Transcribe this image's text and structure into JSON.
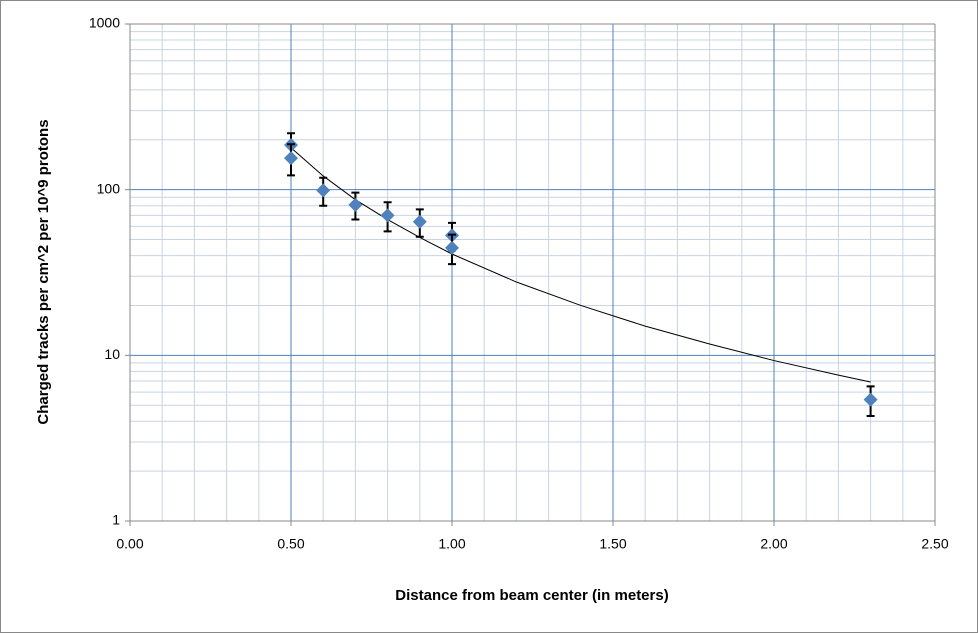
{
  "chart_data": {
    "type": "scatter",
    "x_label": "Distance from beam center (in meters)",
    "y_label": "Charged tracks per cm^2 per 10^9 protons",
    "xlim": [
      0,
      2.5
    ],
    "xticks": [
      {
        "value": 0,
        "label": "0.00"
      },
      {
        "value": 0.5,
        "label": "0.50"
      },
      {
        "value": 1,
        "label": "1.00"
      },
      {
        "value": 1.5,
        "label": "1.50"
      },
      {
        "value": 2,
        "label": "2.00"
      },
      {
        "value": 2.5,
        "label": "2.50"
      }
    ],
    "ylim": [
      1,
      1000
    ],
    "yticks": [
      1,
      10,
      100,
      1000
    ],
    "y_scale": "log",
    "grid": true,
    "minor_grid": true,
    "series": [
      {
        "color": "#4f81bd",
        "x": [
          0.5,
          0.5,
          0.6,
          0.7,
          0.8,
          0.9,
          1.0,
          1.0,
          2.3
        ],
        "values": [
          186,
          155,
          99,
          81,
          70,
          64,
          53,
          44.5,
          5.4
        ],
        "errors": [
          33,
          33,
          19,
          15,
          14,
          12,
          10,
          9,
          1.1
        ]
      }
    ],
    "trendline": {
      "color": "#000000",
      "x": [
        0.5,
        0.6,
        0.7,
        0.8,
        0.9,
        1.0,
        1.2,
        1.4,
        1.6,
        1.8,
        2.0,
        2.2,
        2.3
      ],
      "values": [
        179,
        121,
        87,
        66,
        51.5,
        40.9,
        27.7,
        20.0,
        15.0,
        11.7,
        9.3,
        7.6,
        6.9
      ]
    }
  }
}
